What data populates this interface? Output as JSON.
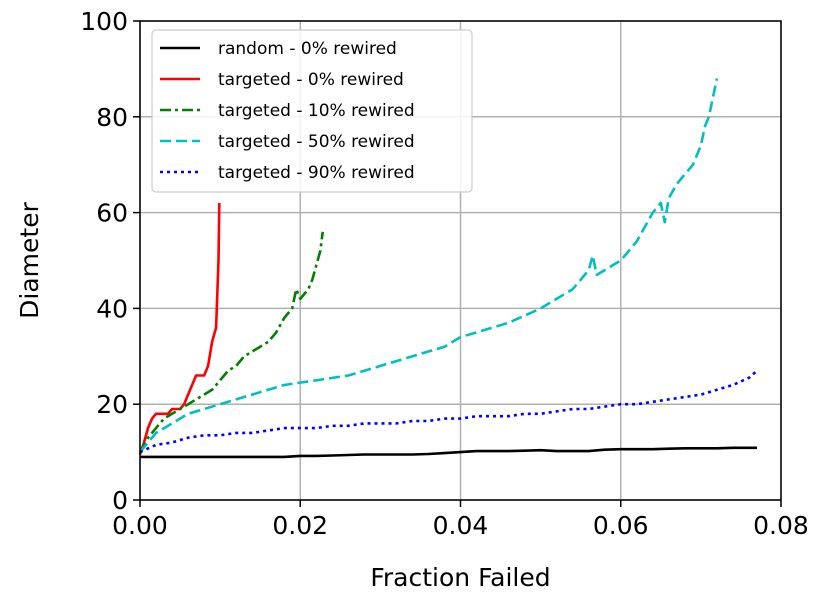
{
  "chart_data": {
    "type": "line",
    "title": "",
    "xlabel": "Fraction Failed",
    "ylabel": "Diameter",
    "xlim": [
      0.0,
      0.08
    ],
    "ylim": [
      0,
      100
    ],
    "xticks": [
      "0.00",
      "0.02",
      "0.04",
      "0.06",
      "0.08"
    ],
    "xtick_values": [
      0.0,
      0.02,
      0.04,
      0.06,
      0.08
    ],
    "yticks": [
      "0",
      "20",
      "40",
      "60",
      "80",
      "100"
    ],
    "ytick_values": [
      0,
      20,
      40,
      60,
      80,
      100
    ],
    "grid": true,
    "legend_position": "top-left",
    "series": [
      {
        "name": "random - 0% rewired",
        "color": "#000000",
        "dash": "solid",
        "x": [
          0.0,
          0.002,
          0.004,
          0.006,
          0.008,
          0.01,
          0.012,
          0.014,
          0.016,
          0.018,
          0.02,
          0.022,
          0.024,
          0.026,
          0.028,
          0.03,
          0.032,
          0.034,
          0.036,
          0.038,
          0.04,
          0.042,
          0.044,
          0.046,
          0.048,
          0.05,
          0.052,
          0.054,
          0.056,
          0.058,
          0.06,
          0.062,
          0.064,
          0.066,
          0.068,
          0.07,
          0.072,
          0.074,
          0.076,
          0.077
        ],
        "y": [
          9.0,
          9.0,
          9.0,
          9.0,
          9.0,
          9.0,
          9.0,
          9.0,
          9.0,
          9.0,
          9.2,
          9.2,
          9.3,
          9.4,
          9.5,
          9.5,
          9.5,
          9.5,
          9.6,
          9.8,
          10.0,
          10.2,
          10.2,
          10.2,
          10.3,
          10.4,
          10.2,
          10.2,
          10.2,
          10.5,
          10.6,
          10.6,
          10.6,
          10.7,
          10.8,
          10.8,
          10.8,
          10.9,
          10.9,
          10.9
        ]
      },
      {
        "name": "targeted - 0% rewired",
        "color": "#ff0000",
        "dash": "solid",
        "x": [
          0.0,
          0.0005,
          0.001,
          0.0015,
          0.002,
          0.0025,
          0.003,
          0.0035,
          0.004,
          0.0045,
          0.005,
          0.0055,
          0.006,
          0.0065,
          0.007,
          0.0075,
          0.008,
          0.0085,
          0.009,
          0.0095,
          0.0098,
          0.0099
        ],
        "y": [
          9.5,
          12.0,
          15.0,
          17.0,
          18.0,
          18.0,
          18.0,
          18.0,
          19.0,
          19.0,
          19.0,
          20.0,
          22.0,
          24.0,
          26.0,
          26.0,
          26.0,
          28.0,
          33.0,
          36.0,
          50.0,
          62.0
        ]
      },
      {
        "name": "targeted - 10% rewired",
        "color": "#007f00",
        "dash": "dashdot",
        "x": [
          0.0,
          0.001,
          0.002,
          0.003,
          0.004,
          0.005,
          0.006,
          0.007,
          0.008,
          0.009,
          0.01,
          0.011,
          0.012,
          0.013,
          0.014,
          0.015,
          0.016,
          0.017,
          0.018,
          0.019,
          0.0195,
          0.02,
          0.0205,
          0.021,
          0.0215,
          0.022,
          0.0225,
          0.0228
        ],
        "y": [
          10.0,
          13.0,
          15.0,
          17.0,
          18.0,
          19.0,
          20.0,
          21.0,
          22.0,
          23.0,
          25.0,
          27.0,
          28.0,
          30.0,
          31.0,
          32.0,
          33.0,
          35.0,
          38.0,
          40.0,
          44.0,
          42.0,
          43.0,
          44.0,
          46.0,
          49.0,
          52.0,
          56.0
        ]
      },
      {
        "name": "targeted - 50% rewired",
        "color": "#00bfbf",
        "dash": "dashed",
        "x": [
          0.0,
          0.002,
          0.004,
          0.006,
          0.008,
          0.01,
          0.012,
          0.014,
          0.016,
          0.018,
          0.02,
          0.022,
          0.024,
          0.026,
          0.028,
          0.03,
          0.032,
          0.034,
          0.036,
          0.038,
          0.04,
          0.042,
          0.044,
          0.046,
          0.048,
          0.05,
          0.052,
          0.054,
          0.055,
          0.056,
          0.0565,
          0.057,
          0.058,
          0.059,
          0.06,
          0.061,
          0.062,
          0.063,
          0.064,
          0.065,
          0.0655,
          0.066,
          0.067,
          0.068,
          0.069,
          0.07,
          0.0705,
          0.071,
          0.0715,
          0.072
        ],
        "y": [
          10.0,
          14.0,
          16.0,
          18.0,
          19.0,
          20.0,
          21.0,
          22.0,
          23.0,
          24.0,
          24.5,
          25.0,
          25.5,
          26.0,
          27.0,
          28.0,
          29.0,
          30.0,
          31.0,
          32.0,
          34.0,
          35.0,
          36.0,
          37.0,
          38.5,
          40.0,
          42.0,
          44.0,
          46.0,
          48.0,
          51.0,
          47.0,
          48.0,
          49.0,
          50.0,
          52.0,
          54.0,
          57.0,
          60.0,
          62.0,
          58.0,
          63.0,
          66.0,
          68.0,
          70.0,
          74.0,
          78.0,
          80.0,
          84.0,
          88.0
        ]
      },
      {
        "name": "targeted - 90% rewired",
        "color": "#0000ff",
        "dash": "dotted",
        "x": [
          0.0,
          0.002,
          0.004,
          0.006,
          0.008,
          0.01,
          0.012,
          0.014,
          0.016,
          0.018,
          0.02,
          0.022,
          0.024,
          0.026,
          0.028,
          0.03,
          0.032,
          0.034,
          0.036,
          0.038,
          0.04,
          0.042,
          0.044,
          0.046,
          0.048,
          0.05,
          0.052,
          0.054,
          0.056,
          0.058,
          0.06,
          0.062,
          0.064,
          0.066,
          0.068,
          0.07,
          0.072,
          0.074,
          0.076,
          0.077
        ],
        "y": [
          10.0,
          11.5,
          12.0,
          13.0,
          13.5,
          13.5,
          14.0,
          14.0,
          14.5,
          15.0,
          15.0,
          15.0,
          15.5,
          15.5,
          16.0,
          16.0,
          16.0,
          16.5,
          16.5,
          17.0,
          17.0,
          17.5,
          17.5,
          17.5,
          18.0,
          18.0,
          18.5,
          19.0,
          19.0,
          19.5,
          20.0,
          20.0,
          20.5,
          21.0,
          21.5,
          22.0,
          23.0,
          24.0,
          25.5,
          27.0
        ]
      }
    ]
  }
}
